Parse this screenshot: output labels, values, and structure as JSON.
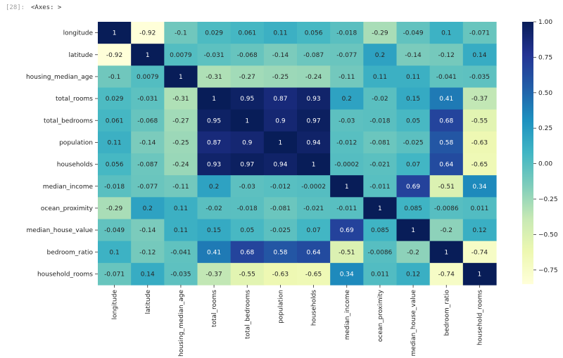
{
  "output_cell": {
    "prompt": "[28]:",
    "text": "<Axes: >"
  },
  "chart_data": {
    "type": "heatmap",
    "colormap": "YlGnBu",
    "vmin": -0.85,
    "vmax": 1.0,
    "labels": [
      "longitude",
      "latitude",
      "housing_median_age",
      "total_rooms",
      "total_bedrooms",
      "population",
      "households",
      "median_income",
      "ocean_proximity",
      "median_house_value",
      "bedroom_ratio",
      "household_rooms"
    ],
    "values": [
      [
        "1",
        "-0.92",
        "-0.1",
        "0.029",
        "0.061",
        "0.11",
        "0.056",
        "-0.018",
        "-0.29",
        "-0.049",
        "0.1",
        "-0.071"
      ],
      [
        "-0.92",
        "1",
        "0.0079",
        "-0.031",
        "-0.068",
        "-0.14",
        "-0.087",
        "-0.077",
        "0.2",
        "-0.14",
        "-0.12",
        "0.14"
      ],
      [
        "-0.1",
        "0.0079",
        "1",
        "-0.31",
        "-0.27",
        "-0.25",
        "-0.24",
        "-0.11",
        "0.11",
        "0.11",
        "-0.041",
        "-0.035"
      ],
      [
        "0.029",
        "-0.031",
        "-0.31",
        "1",
        "0.95",
        "0.87",
        "0.93",
        "0.2",
        "-0.02",
        "0.15",
        "0.41",
        "-0.37"
      ],
      [
        "0.061",
        "-0.068",
        "-0.27",
        "0.95",
        "1",
        "0.9",
        "0.97",
        "-0.03",
        "-0.018",
        "0.05",
        "0.68",
        "-0.55"
      ],
      [
        "0.11",
        "-0.14",
        "-0.25",
        "0.87",
        "0.9",
        "1",
        "0.94",
        "-0.012",
        "-0.081",
        "-0.025",
        "0.58",
        "-0.63"
      ],
      [
        "0.056",
        "-0.087",
        "-0.24",
        "0.93",
        "0.97",
        "0.94",
        "1",
        "-0.0002",
        "-0.021",
        "0.07",
        "0.64",
        "-0.65"
      ],
      [
        "-0.018",
        "-0.077",
        "-0.11",
        "0.2",
        "-0.03",
        "-0.012",
        "-0.0002",
        "1",
        "-0.011",
        "0.69",
        "-0.51",
        "0.34"
      ],
      [
        "-0.29",
        "0.2",
        "0.11",
        "-0.02",
        "-0.018",
        "-0.081",
        "-0.021",
        "-0.011",
        "1",
        "0.085",
        "-0.0086",
        "0.011"
      ],
      [
        "-0.049",
        "-0.14",
        "0.11",
        "0.15",
        "0.05",
        "-0.025",
        "0.07",
        "0.69",
        "0.085",
        "1",
        "-0.2",
        "0.12"
      ],
      [
        "0.1",
        "-0.12",
        "-0.041",
        "0.41",
        "0.68",
        "0.58",
        "0.64",
        "-0.51",
        "-0.0086",
        "-0.2",
        "1",
        "-0.74"
      ],
      [
        "-0.071",
        "0.14",
        "-0.035",
        "-0.37",
        "-0.55",
        "-0.63",
        "-0.65",
        "0.34",
        "0.011",
        "0.12",
        "-0.74",
        "1"
      ]
    ],
    "colorbar_ticks": [
      "1.00",
      "0.75",
      "0.50",
      "0.25",
      "0.00",
      "−0.25",
      "−0.50",
      "−0.75"
    ],
    "colorbar_tick_values": [
      1.0,
      0.75,
      0.5,
      0.25,
      0.0,
      -0.25,
      -0.5,
      -0.75
    ]
  }
}
